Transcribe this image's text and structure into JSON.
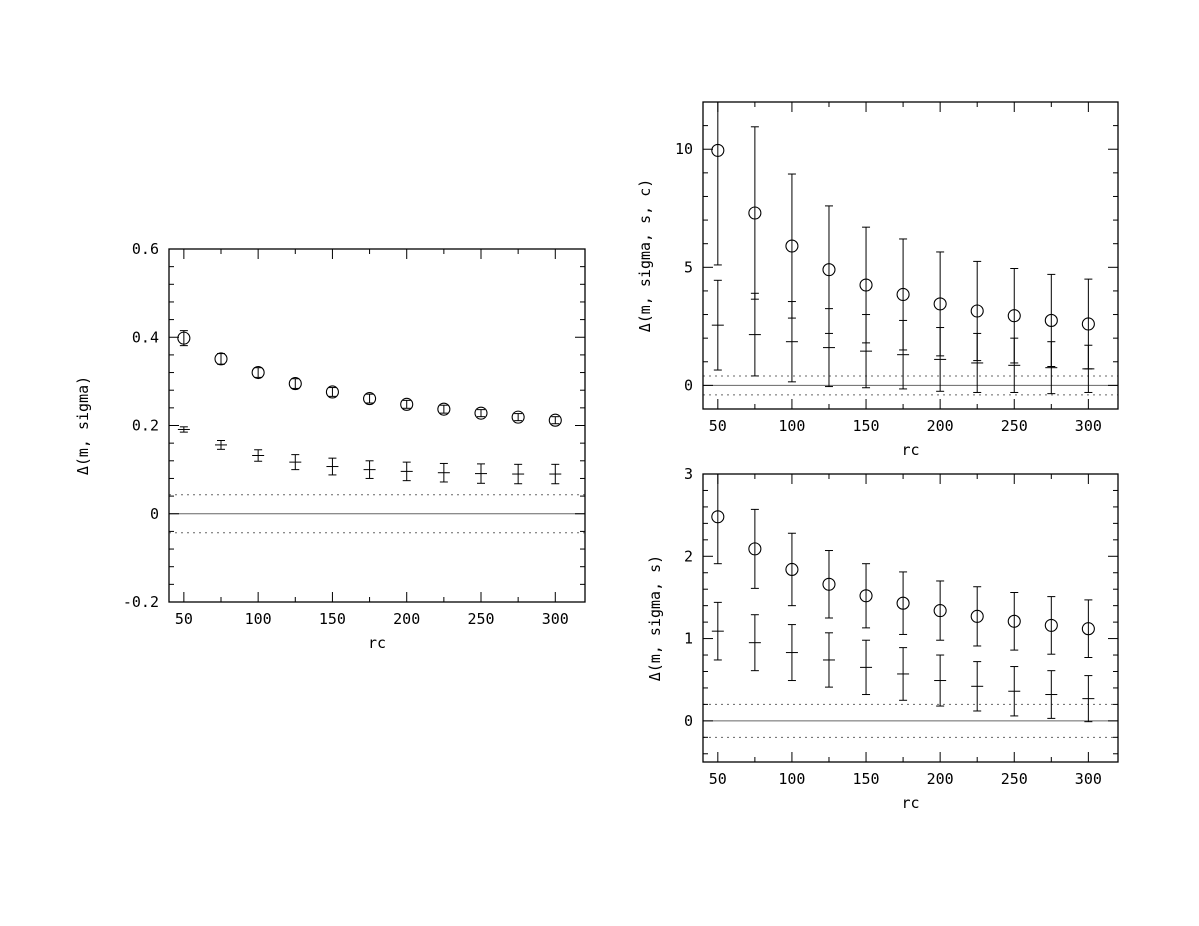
{
  "chart_data": [
    {
      "type": "scatter",
      "title": "",
      "xlabel": "rc",
      "ylabel": "Δ(m, sigma)",
      "xlim": [
        40,
        320
      ],
      "ylim": [
        -0.2,
        0.6
      ],
      "xticks": [
        50,
        100,
        150,
        200,
        250,
        300
      ],
      "xtick_labels": [
        "50",
        "100",
        "150",
        "200",
        "250",
        "300"
      ],
      "yticks": [
        -0.2,
        0,
        0.2,
        0.4,
        0.6
      ],
      "ytick_labels": [
        "-0.2",
        "0",
        "0.2",
        "0.4",
        "0.6"
      ],
      "x": [
        50,
        75,
        100,
        125,
        150,
        175,
        200,
        225,
        250,
        275,
        300
      ],
      "series": [
        {
          "marker": "circle",
          "values": [
            0.398,
            0.351,
            0.32,
            0.295,
            0.276,
            0.261,
            0.248,
            0.237,
            0.228,
            0.219,
            0.212
          ],
          "errors": [
            0.017,
            0.012,
            0.011,
            0.011,
            0.01,
            0.01,
            0.009,
            0.009,
            0.008,
            0.008,
            0.008
          ]
        },
        {
          "marker": "plus",
          "values": [
            0.191,
            0.156,
            0.132,
            0.117,
            0.107,
            0.1,
            0.096,
            0.093,
            0.091,
            0.09,
            0.09
          ],
          "errors": [
            0.006,
            0.01,
            0.013,
            0.017,
            0.019,
            0.02,
            0.021,
            0.021,
            0.022,
            0.022,
            0.022
          ]
        }
      ],
      "reference_lines": {
        "zero": 0,
        "band": [
          -0.043,
          0.043
        ]
      }
    },
    {
      "type": "scatter",
      "title": "",
      "xlabel": "rc",
      "ylabel": "Δ(m, sigma, s, c)",
      "xlim": [
        40,
        320
      ],
      "ylim": [
        -1,
        12
      ],
      "xticks": [
        50,
        100,
        150,
        200,
        250,
        300
      ],
      "xtick_labels": [
        "50",
        "100",
        "150",
        "200",
        "250",
        "300"
      ],
      "yticks": [
        0,
        5,
        10
      ],
      "ytick_labels": [
        "0",
        "5",
        "10"
      ],
      "x": [
        50,
        75,
        100,
        125,
        150,
        175,
        200,
        225,
        250,
        275,
        300
      ],
      "series": [
        {
          "marker": "circle",
          "values": [
            9.95,
            7.3,
            5.9,
            4.9,
            4.25,
            3.85,
            3.45,
            3.15,
            2.95,
            2.75,
            2.6
          ],
          "errors": [
            4.85,
            3.65,
            3.05,
            2.7,
            2.45,
            2.35,
            2.2,
            2.1,
            2.0,
            1.95,
            1.9
          ]
        },
        {
          "marker": "plus",
          "values": [
            2.55,
            2.15,
            1.85,
            1.6,
            1.45,
            1.3,
            1.1,
            0.95,
            0.85,
            0.75,
            0.7
          ],
          "errors": [
            1.9,
            1.75,
            1.7,
            1.65,
            1.55,
            1.45,
            1.35,
            1.25,
            1.15,
            1.1,
            1.0
          ]
        }
      ],
      "reference_lines": {
        "zero": 0,
        "band": [
          -0.4,
          0.4
        ]
      }
    },
    {
      "type": "scatter",
      "title": "",
      "xlabel": "rc",
      "ylabel": "Δ(m, sigma, s)",
      "xlim": [
        40,
        320
      ],
      "ylim": [
        -0.5,
        3
      ],
      "xticks": [
        50,
        100,
        150,
        200,
        250,
        300
      ],
      "xtick_labels": [
        "50",
        "100",
        "150",
        "200",
        "250",
        "300"
      ],
      "yticks": [
        0,
        1,
        2,
        3
      ],
      "ytick_labels": [
        "0",
        "1",
        "2",
        "3"
      ],
      "x": [
        50,
        75,
        100,
        125,
        150,
        175,
        200,
        225,
        250,
        275,
        300
      ],
      "series": [
        {
          "marker": "circle",
          "values": [
            2.48,
            2.09,
            1.84,
            1.66,
            1.52,
            1.43,
            1.34,
            1.27,
            1.21,
            1.16,
            1.12
          ],
          "errors": [
            0.57,
            0.48,
            0.44,
            0.41,
            0.39,
            0.38,
            0.36,
            0.36,
            0.35,
            0.35,
            0.35
          ]
        },
        {
          "marker": "plus",
          "values": [
            1.09,
            0.95,
            0.83,
            0.74,
            0.65,
            0.57,
            0.49,
            0.42,
            0.36,
            0.32,
            0.27
          ],
          "errors": [
            0.35,
            0.34,
            0.34,
            0.33,
            0.33,
            0.32,
            0.31,
            0.3,
            0.3,
            0.29,
            0.28
          ]
        }
      ],
      "reference_lines": {
        "zero": 0,
        "band": [
          -0.2,
          0.2
        ]
      }
    }
  ]
}
